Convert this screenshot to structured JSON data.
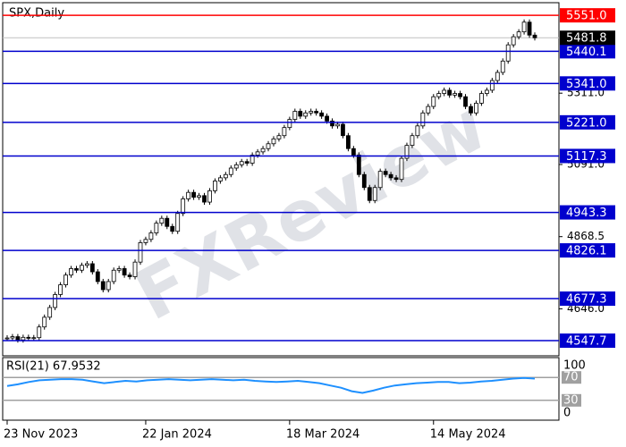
{
  "chart_data": {
    "type": "candlestick",
    "title": "SPX,Daily",
    "watermark": "FXReview",
    "up_color": "#ffffff",
    "down_color": "#000000",
    "categories": [
      "23 Nov 2023",
      null,
      null,
      null,
      null,
      null,
      null,
      null,
      null,
      null,
      null,
      null,
      null,
      null,
      null,
      null,
      null,
      null,
      null,
      null,
      null,
      null,
      null,
      null,
      null,
      null,
      "22 Jan 2024",
      null,
      null,
      null,
      null,
      null,
      null,
      null,
      null,
      null,
      null,
      null,
      null,
      null,
      null,
      null,
      null,
      null,
      null,
      null,
      null,
      null,
      null,
      null,
      null,
      null,
      null,
      "18 Mar 2024",
      null,
      null,
      null,
      null,
      null,
      null,
      null,
      null,
      null,
      null,
      null,
      null,
      null,
      null,
      null,
      null,
      null,
      null,
      null,
      null,
      null,
      null,
      null,
      null,
      null,
      null,
      "14 May 2024",
      null,
      null,
      null,
      null,
      null,
      null,
      null,
      null,
      null,
      null,
      null,
      null,
      null,
      null,
      null,
      null,
      null,
      null,
      null
    ],
    "values": [
      4556,
      4560,
      4550,
      4558,
      4555,
      4557,
      4590,
      4620,
      4650,
      4690,
      4720,
      4750,
      4770,
      4765,
      4780,
      4785,
      4760,
      4730,
      4705,
      4730,
      4765,
      4770,
      4750,
      4745,
      4790,
      4850,
      4860,
      4880,
      4910,
      4925,
      4900,
      4885,
      4940,
      4985,
      5005,
      4990,
      4995,
      4975,
      5010,
      5040,
      5050,
      5060,
      5080,
      5090,
      5100,
      5095,
      5120,
      5130,
      5140,
      5155,
      5170,
      5180,
      5205,
      5230,
      5255,
      5240,
      5250,
      5255,
      5250,
      5240,
      5225,
      5210,
      5215,
      5180,
      5140,
      5120,
      5060,
      5020,
      4980,
      5020,
      5070,
      5060,
      5050,
      5045,
      5110,
      5150,
      5180,
      5210,
      5250,
      5270,
      5300,
      5310,
      5320,
      5305,
      5310,
      5300,
      5270,
      5250,
      5280,
      5310,
      5320,
      5350,
      5375,
      5410,
      5460,
      5485,
      5500,
      5530,
      5490,
      5481.8
    ],
    "ylim": [
      4501,
      5590
    ],
    "yticks": [
      {
        "value": 5311,
        "label": "5311.0"
      },
      {
        "value": 5091,
        "label": "5091.0"
      },
      {
        "value": 4868.5,
        "label": "4868.5"
      },
      {
        "value": 4646,
        "label": "4646.0"
      }
    ],
    "levels": [
      {
        "value": 5551,
        "label": "5551.0",
        "color": "#ff0000"
      },
      {
        "value": 5440.1,
        "label": "5440.1",
        "color": "#0000cd"
      },
      {
        "value": 5341,
        "label": "5341.0",
        "color": "#0000cd"
      },
      {
        "value": 5221,
        "label": "5221.0",
        "color": "#0000cd"
      },
      {
        "value": 5117.3,
        "label": "5117.3",
        "color": "#0000cd"
      },
      {
        "value": 4943.3,
        "label": "4943.3",
        "color": "#0000cd"
      },
      {
        "value": 4826.1,
        "label": "4826.1",
        "color": "#0000cd"
      },
      {
        "value": 4677.3,
        "label": "4677.3",
        "color": "#0000cd"
      },
      {
        "value": 4547.7,
        "label": "4547.7",
        "color": "#0000cd"
      }
    ],
    "current": {
      "value": 5481.8,
      "label": "5481.8",
      "color": "#000000"
    },
    "rsi": {
      "title": "RSI(21) 67.9532",
      "color": "#1e90ff",
      "values": [
        55,
        58,
        62,
        65,
        66,
        67,
        67,
        66,
        63,
        60,
        62,
        64,
        63,
        65,
        66,
        67,
        66,
        65,
        66,
        67,
        66,
        65,
        66,
        64,
        63,
        62,
        63,
        64,
        62,
        60,
        56,
        52,
        46,
        43,
        47,
        52,
        56,
        58,
        60,
        61,
        62,
        62,
        60,
        61,
        63,
        64,
        66,
        68,
        69,
        67.9532
      ],
      "ylim": [
        0,
        100
      ],
      "yticks": [
        100,
        70,
        30,
        0
      ],
      "levels": [
        70,
        30
      ]
    }
  }
}
